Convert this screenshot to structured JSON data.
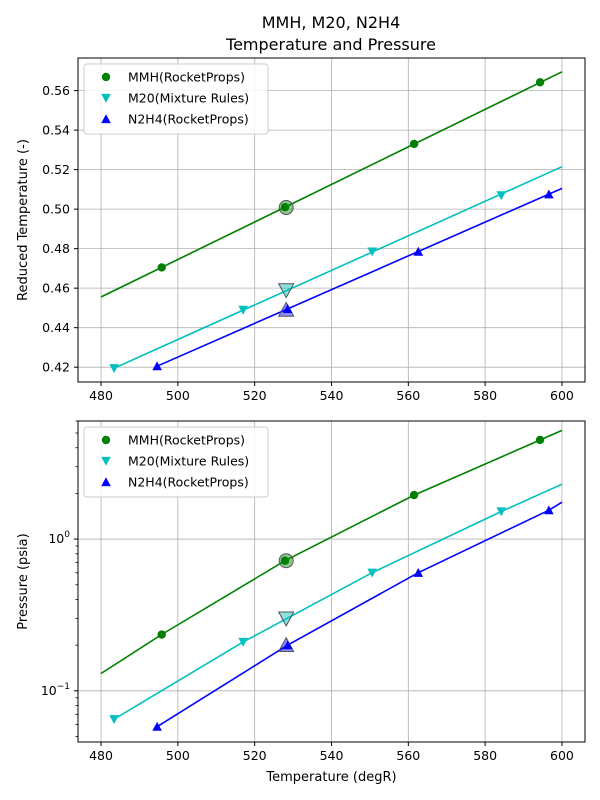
{
  "figure": {
    "title_line1": "MMH, M20, N2H4",
    "title_line2": "Temperature and Pressure"
  },
  "chart_data": [
    {
      "type": "line",
      "ylabel": "Reduced Temperature (-)",
      "xlabel": "",
      "xlim": [
        474,
        606
      ],
      "ylim": [
        0.4125,
        0.5765
      ],
      "x_ticks": [
        480,
        500,
        520,
        540,
        560,
        580,
        600
      ],
      "y_ticks": [
        0.42,
        0.44,
        0.46,
        0.48,
        0.5,
        0.52,
        0.54,
        0.56
      ],
      "grid": true,
      "legend": "top-left",
      "series": [
        {
          "name": "MMH(RocketProps)",
          "color": "#008000",
          "marker": "circle",
          "line": [
            [
              480,
              0.4555
            ],
            [
              520,
              0.4935
            ],
            [
              560,
              0.5315
            ],
            [
              600,
              0.5695
            ]
          ],
          "points": [
            [
              495.8,
              0.4705
            ],
            [
              527.9,
              0.501
            ],
            [
              561.5,
              0.533
            ],
            [
              594.3,
              0.5642
            ]
          ],
          "highlight": [
            528.2,
            0.5008
          ]
        },
        {
          "name": "M20(Mixture Rules)",
          "color": "#00bfbf",
          "marker": "triangle-down",
          "line": [
            [
              483.4,
              0.4195
            ],
            [
              600,
              0.5215
            ]
          ],
          "points": [
            [
              483.4,
              0.4195
            ],
            [
              517,
              0.449
            ],
            [
              550.6,
              0.4785
            ],
            [
              584.2,
              0.507
            ]
          ],
          "highlight": [
            528.2,
            0.459
          ]
        },
        {
          "name": "N2H4(RocketProps)",
          "color": "#0000ff",
          "marker": "triangle-up",
          "line": [
            [
              494.6,
              0.4205
            ],
            [
              600,
              0.5105
            ]
          ],
          "points": [
            [
              494.6,
              0.4205
            ],
            [
              528.6,
              0.4495
            ],
            [
              562.6,
              0.4785
            ],
            [
              596.6,
              0.5075
            ]
          ],
          "highlight": [
            528.2,
            0.449
          ]
        }
      ]
    },
    {
      "type": "line",
      "ylabel": "Pressure (psia)",
      "xlabel": "Temperature (degR)",
      "yscale": "log",
      "xlim": [
        474,
        606
      ],
      "ylim": [
        0.046,
        6.0
      ],
      "x_ticks": [
        480,
        500,
        520,
        540,
        560,
        580,
        600
      ],
      "y_major_ticks": [
        0.1,
        1.0
      ],
      "y_minor_ticks": [
        0.05,
        0.06,
        0.07,
        0.08,
        0.09,
        0.2,
        0.3,
        0.4,
        0.5,
        0.6,
        0.7,
        0.8,
        0.9,
        2,
        3,
        4,
        5,
        6
      ],
      "grid": true,
      "legend": "top-left",
      "series": [
        {
          "name": "MMH(RocketProps)",
          "color": "#008000",
          "marker": "circle",
          "line": [
            [
              480,
              0.13
            ],
            [
              495.8,
              0.235
            ],
            [
              527.9,
              0.72
            ],
            [
              561.5,
              1.95
            ],
            [
              594.3,
              4.5
            ],
            [
              600,
              5.2
            ]
          ],
          "points": [
            [
              495.8,
              0.235
            ],
            [
              527.9,
              0.72
            ],
            [
              561.5,
              1.95
            ],
            [
              594.3,
              4.5
            ]
          ],
          "highlight": [
            528.2,
            0.72
          ]
        },
        {
          "name": "M20(Mixture Rules)",
          "color": "#00bfbf",
          "marker": "triangle-down",
          "line": [
            [
              483.4,
              0.065
            ],
            [
              517,
              0.21
            ],
            [
              550.6,
              0.6
            ],
            [
              584.2,
              1.52
            ],
            [
              600,
              2.3
            ]
          ],
          "points": [
            [
              483.4,
              0.065
            ],
            [
              517,
              0.21
            ],
            [
              550.6,
              0.6
            ],
            [
              584.2,
              1.52
            ]
          ],
          "highlight": [
            528.2,
            0.3
          ]
        },
        {
          "name": "N2H4(RocketProps)",
          "color": "#0000ff",
          "marker": "triangle-up",
          "line": [
            [
              494.6,
              0.058
            ],
            [
              528.6,
              0.2
            ],
            [
              562.6,
              0.6
            ],
            [
              596.6,
              1.55
            ],
            [
              600,
              1.75
            ]
          ],
          "points": [
            [
              494.6,
              0.058
            ],
            [
              528.6,
              0.2
            ],
            [
              562.6,
              0.6
            ],
            [
              596.6,
              1.55
            ]
          ],
          "highlight": [
            528.2,
            0.2
          ]
        }
      ]
    }
  ]
}
